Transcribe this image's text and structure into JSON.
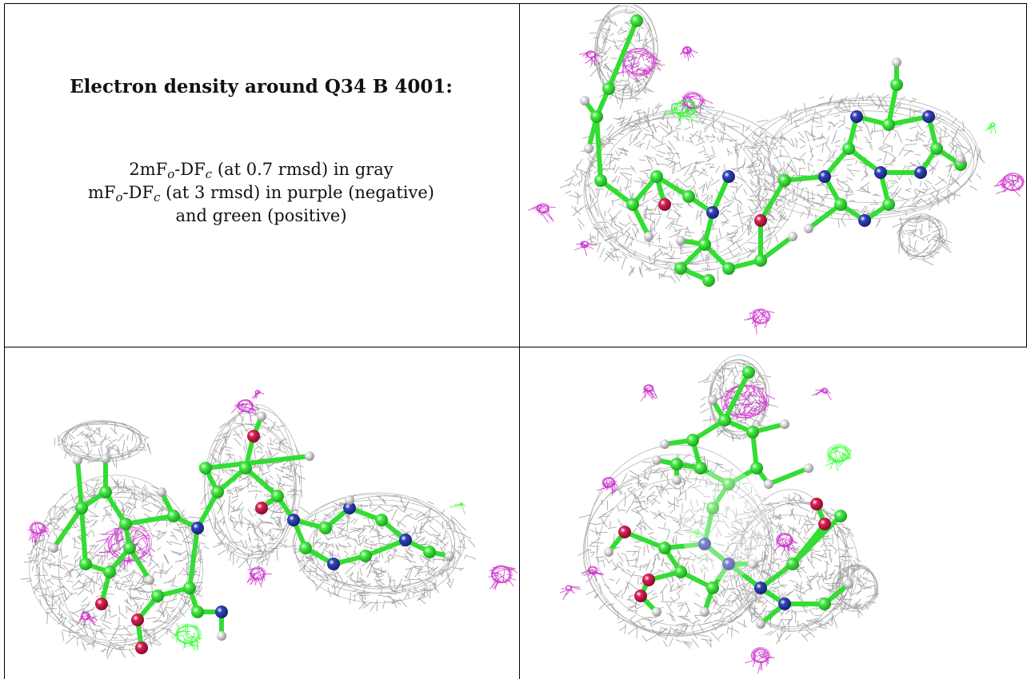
{
  "caption": {
    "title": "Electron density around Q34 B 4001:",
    "line1": {
      "a": "2mF",
      "o": "o",
      "b": "-DF",
      "c": "c",
      "rest": " (at 0.7 rmsd) in gray"
    },
    "line2": {
      "a": "mF",
      "o": "o",
      "b": "-DF",
      "c": "c",
      "rest": " (at 3 rmsd) in purple (negative)"
    },
    "line3": "and green (positive)"
  },
  "colors": {
    "mesh_gray": "#9a9a9a",
    "negative_purple": "#cc33cc",
    "positive_green": "#33ff33",
    "carbon_green": "#44ee44",
    "nitrogen_blue": "#3344bb",
    "oxygen_red": "#dd2255",
    "hydrogen_white": "#e8e8e8",
    "border": "#000000"
  },
  "views": [
    {
      "name": "view-top-right"
    },
    {
      "name": "view-bottom-left"
    },
    {
      "name": "view-bottom-right"
    }
  ]
}
